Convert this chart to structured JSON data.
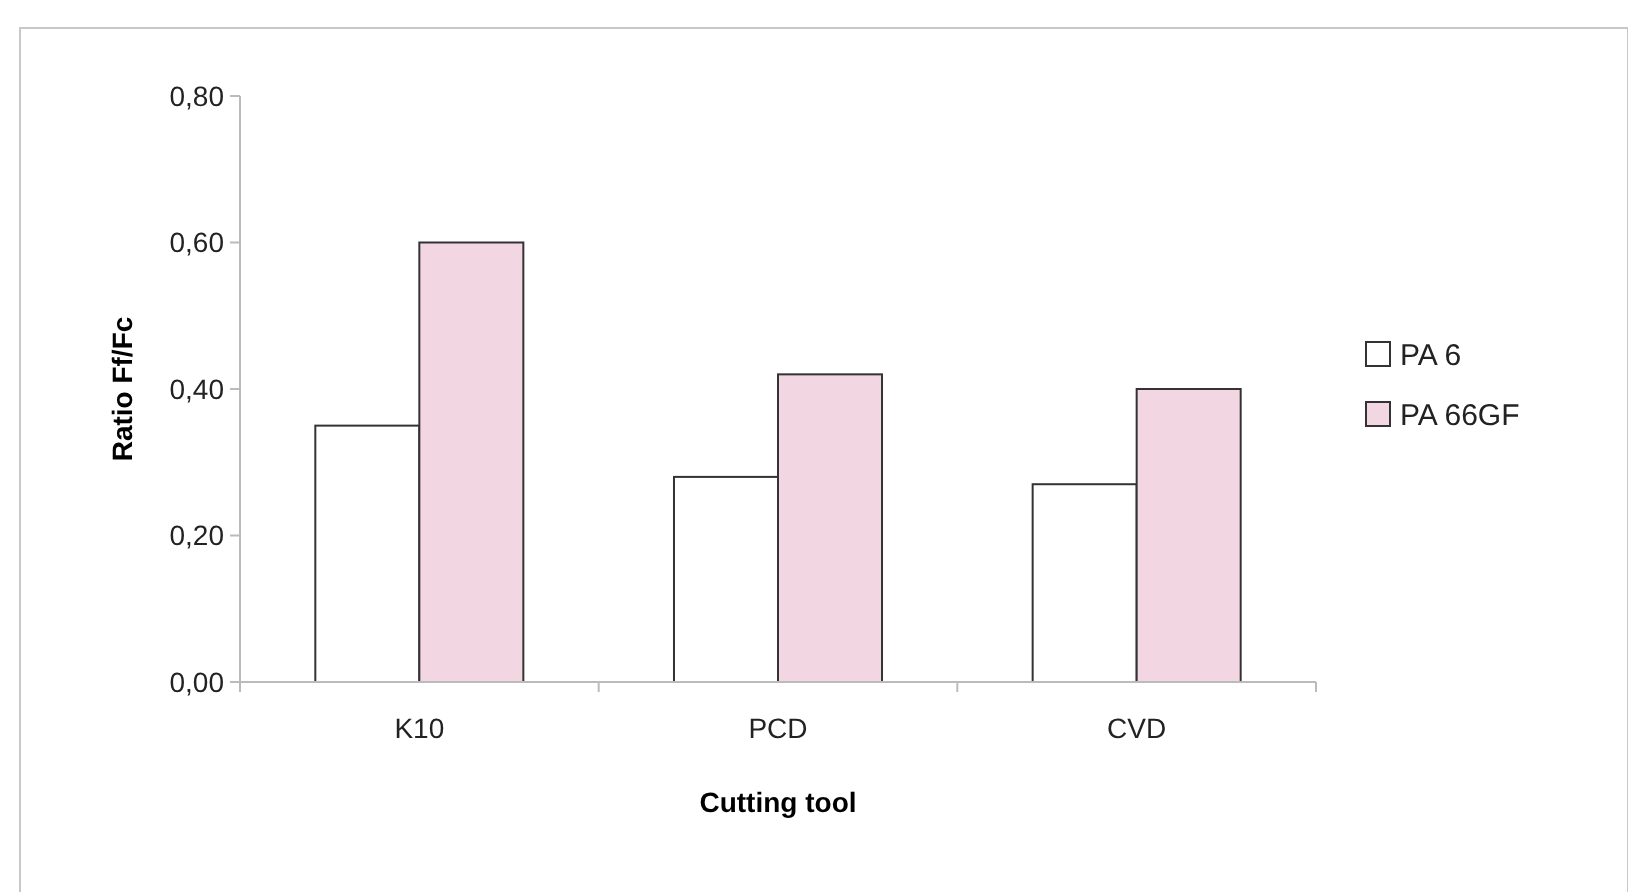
{
  "chart_data": {
    "type": "bar",
    "xlabel": "Cutting tool",
    "ylabel": "Ratio Ff/Fc",
    "categories": [
      "K10",
      "PCD",
      "CVD"
    ],
    "series": [
      {
        "name": "PA 6",
        "color": "#ffffff",
        "values": [
          0.35,
          0.28,
          0.27
        ]
      },
      {
        "name": "PA 66GF",
        "color": "#f2d6e2",
        "values": [
          0.6,
          0.42,
          0.4
        ]
      }
    ],
    "ylim": [
      0,
      0.8
    ],
    "yticks": [
      {
        "value": 0,
        "label": "0,00"
      },
      {
        "value": 0.2,
        "label": "0,20"
      },
      {
        "value": 0.4,
        "label": "0,40"
      },
      {
        "value": 0.6,
        "label": "0,60"
      },
      {
        "value": 0.8,
        "label": "0,80"
      }
    ],
    "grid": false,
    "legend": "right"
  }
}
